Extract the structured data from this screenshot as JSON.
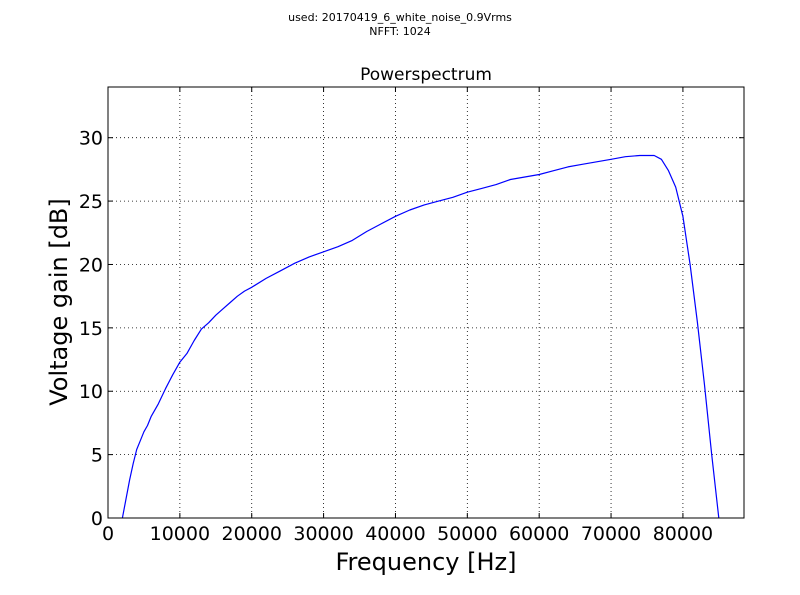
{
  "figure": {
    "suptitle_line1": "used: 20170419_6_white_noise_0.9Vrms",
    "suptitle_line2": "NFFT: 1024"
  },
  "chart_data": {
    "type": "line",
    "title": "Powerspectrum",
    "xlabel": "Frequency [Hz]",
    "ylabel": "Voltage gain [dB]",
    "xlim": [
      0,
      88500
    ],
    "ylim": [
      0,
      34
    ],
    "xticks": [
      0,
      10000,
      20000,
      30000,
      40000,
      50000,
      60000,
      70000,
      80000
    ],
    "yticks": [
      0,
      5,
      10,
      15,
      20,
      25,
      30
    ],
    "grid": true,
    "line_color": "#0000ff",
    "series": [
      {
        "x": [
          2000,
          2500,
          3000,
          3500,
          4000,
          4500,
          5000,
          5500,
          6000,
          7000,
          8000,
          9000,
          10000,
          11000,
          12000,
          13000,
          14000,
          15000,
          16000,
          17000,
          18000,
          19000,
          20000,
          22000,
          24000,
          26000,
          28000,
          30000,
          32000,
          34000,
          36000,
          38000,
          40000,
          42000,
          44000,
          46000,
          48000,
          50000,
          52000,
          54000,
          56000,
          58000,
          60000,
          62000,
          64000,
          66000,
          68000,
          70000,
          72000,
          74000,
          75000,
          76000,
          77000,
          78000,
          79000,
          80000,
          81000,
          82000,
          83000,
          84000,
          85000
        ],
        "y": [
          0,
          1.5,
          3.0,
          4.3,
          5.4,
          6.1,
          6.8,
          7.3,
          8.0,
          9.0,
          10.2,
          11.3,
          12.3,
          13.0,
          14.0,
          14.9,
          15.4,
          16.0,
          16.5,
          17.0,
          17.5,
          17.9,
          18.2,
          18.9,
          19.5,
          20.1,
          20.6,
          21.0,
          21.4,
          21.9,
          22.6,
          23.2,
          23.8,
          24.3,
          24.7,
          25.0,
          25.3,
          25.7,
          26.0,
          26.3,
          26.7,
          26.9,
          27.1,
          27.4,
          27.7,
          27.9,
          28.1,
          28.3,
          28.5,
          28.6,
          28.6,
          28.6,
          28.3,
          27.4,
          26.1,
          23.8,
          20.0,
          15.5,
          10.5,
          5.0,
          0
        ]
      }
    ]
  }
}
